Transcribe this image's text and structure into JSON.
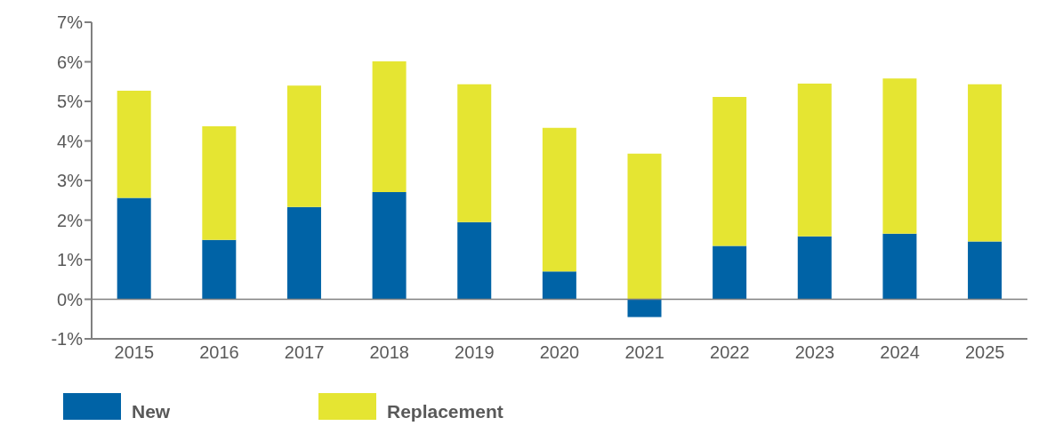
{
  "chart_data": {
    "type": "bar",
    "stacked": true,
    "categories": [
      "2015",
      "2016",
      "2017",
      "2018",
      "2019",
      "2020",
      "2021",
      "2022",
      "2023",
      "2024",
      "2025"
    ],
    "series": [
      {
        "name": "New",
        "color": "#0063a6",
        "values": [
          2.56,
          1.5,
          2.33,
          2.71,
          1.95,
          0.7,
          -0.45,
          1.35,
          1.59,
          1.66,
          1.46
        ]
      },
      {
        "name": "Replacement",
        "color": "#e5e532",
        "values": [
          2.71,
          2.87,
          3.07,
          3.3,
          3.48,
          3.63,
          3.68,
          3.76,
          3.86,
          3.92,
          3.97
        ]
      }
    ],
    "ylim": [
      -1,
      7
    ],
    "yticks": [
      {
        "value": -1,
        "label": "-1%"
      },
      {
        "value": 0,
        "label": "0%"
      },
      {
        "value": 1,
        "label": "1%"
      },
      {
        "value": 2,
        "label": "2%"
      },
      {
        "value": 3,
        "label": "3%"
      },
      {
        "value": 4,
        "label": "4%"
      },
      {
        "value": 5,
        "label": "5%"
      },
      {
        "value": 6,
        "label": "6%"
      },
      {
        "value": 7,
        "label": "7%"
      }
    ],
    "ref_lines": [
      {
        "axis": "y",
        "value": 0,
        "color": "#808080"
      }
    ],
    "grid": false,
    "legend": "bottom"
  }
}
